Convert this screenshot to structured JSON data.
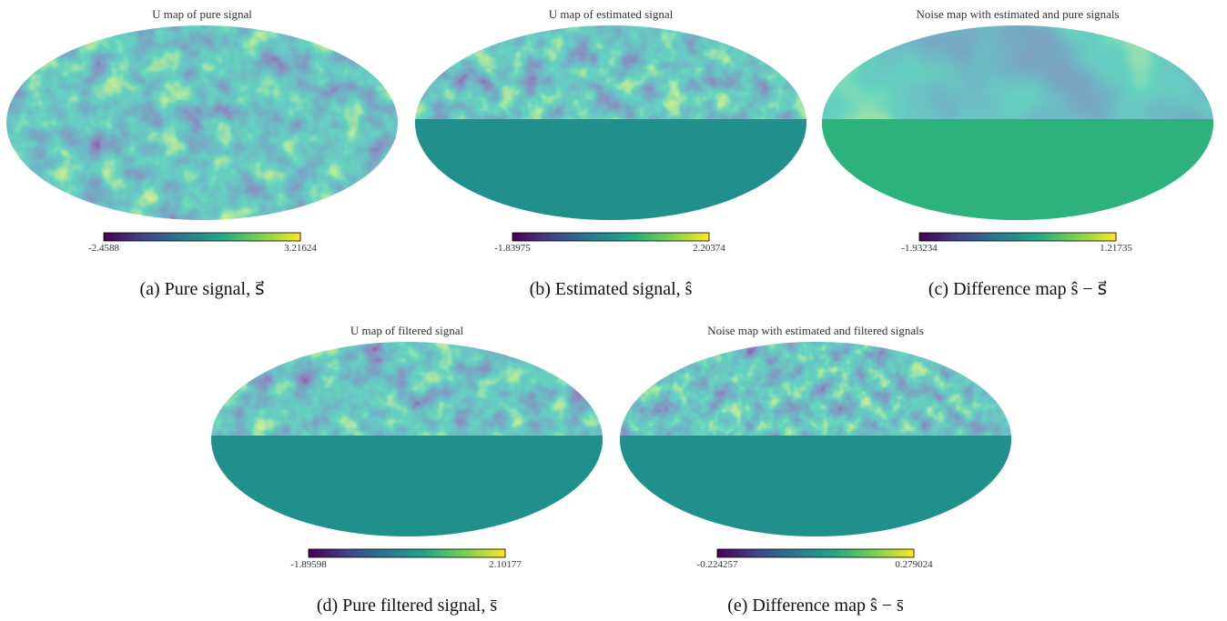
{
  "panels": [
    {
      "title": "U map of pure signal",
      "colorbar": {
        "min": "-2.4588",
        "max": "3.21624"
      },
      "caption": "(a) Pure signal, s⃗"
    },
    {
      "title": "U map of estimated signal",
      "colorbar": {
        "min": "-1.83975",
        "max": "2.20374"
      },
      "caption": "(b) Estimated signal, ŝ"
    },
    {
      "title": "Noise map with estimated and pure signals",
      "colorbar": {
        "min": "-1.93234",
        "max": "1.21735"
      },
      "caption": "(c) Difference map ŝ − s⃗"
    },
    {
      "title": "U map of filtered signal",
      "colorbar": {
        "min": "-1.89598",
        "max": "2.10177"
      },
      "caption": "(d) Pure filtered signal, s̄"
    },
    {
      "title": "Noise map with estimated and filtered signals",
      "colorbar": {
        "min": "-0.224257",
        "max": "0.279024"
      },
      "caption": "(e) Difference map ŝ − s̄"
    }
  ]
}
